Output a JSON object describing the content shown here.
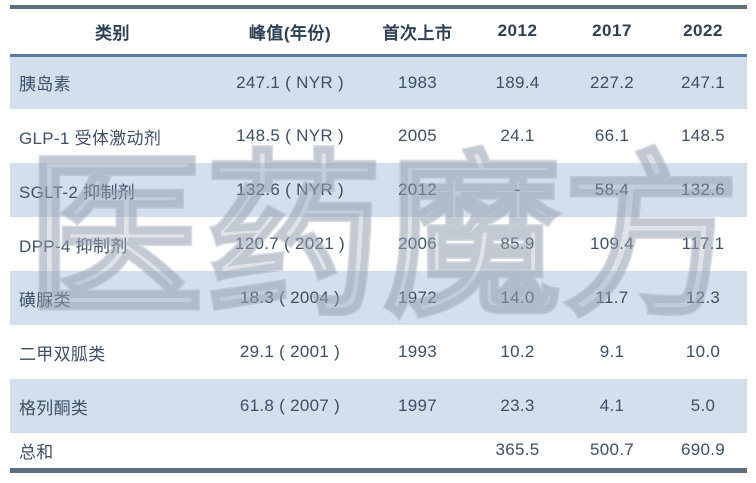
{
  "colors": {
    "row_band": "#d4dfee",
    "row_plain": "#ffffff",
    "border_dark": "#5c6f7a",
    "border_header": "#5a7ba0",
    "text": "#3c5068",
    "header_text": "#2c3f54",
    "watermark": "#96a1b1"
  },
  "watermark": {
    "text": "医药魔方"
  },
  "chart_data": {
    "type": "table",
    "columns": [
      "类别",
      "峰值(年份)",
      "首次上市",
      "2012",
      "2017",
      "2022"
    ],
    "rows": [
      [
        "胰岛素",
        "247.1 ( NYR )",
        "1983",
        "189.4",
        "227.2",
        "247.1"
      ],
      [
        "GLP-1 受体激动剂",
        "148.5 ( NYR )",
        "2005",
        "24.1",
        "66.1",
        "148.5"
      ],
      [
        "SGLT-2 抑制剂",
        "132.6 ( NYR )",
        "2012",
        "-",
        "58.4",
        "132.6"
      ],
      [
        "DPP-4 抑制剂",
        "120.7 ( 2021 )",
        "2006",
        "85.9",
        "109.4",
        "117.1"
      ],
      [
        "磺脲类",
        "18.3 ( 2004 )",
        "1972",
        "14.0",
        "11.7",
        "12.3"
      ],
      [
        "二甲双胍类",
        "29.1 ( 2001 )",
        "1993",
        "10.2",
        "9.1",
        "10.0"
      ],
      [
        "格列酮类",
        "61.8 ( 2007 )",
        "1997",
        "23.3",
        "4.1",
        "5.0"
      ],
      [
        "总和",
        "",
        "",
        "365.5",
        "500.7",
        "690.9"
      ]
    ]
  }
}
